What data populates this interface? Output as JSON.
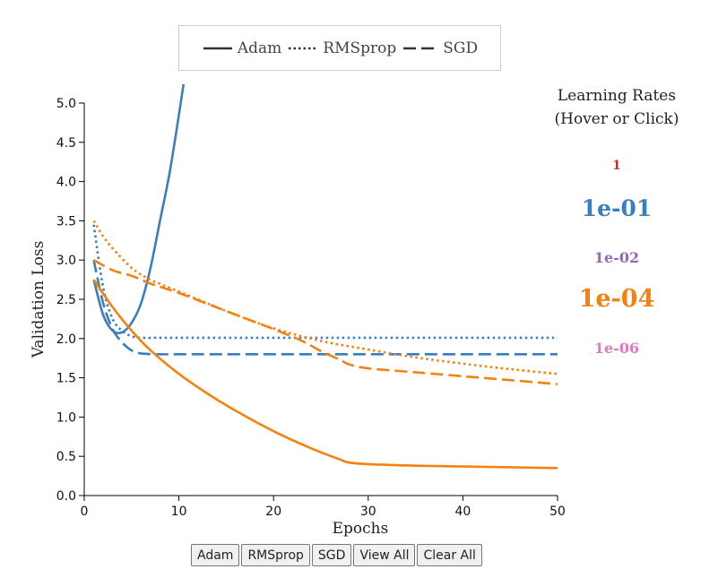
{
  "legend": {
    "items": [
      {
        "label": "Adam",
        "dash": "solid"
      },
      {
        "label": "RMSprop",
        "dash": "dotted"
      },
      {
        "label": "SGD",
        "dash": "dashed"
      }
    ]
  },
  "learning_rates": {
    "title_line1": "Learning Rates",
    "title_line2": "(Hover or Click)",
    "items": [
      {
        "label": "1",
        "color": "#d62728",
        "emphasis": "small"
      },
      {
        "label": "1e-01",
        "color": "#1f77b4",
        "emphasis": "large"
      },
      {
        "label": "1e-02",
        "color": "#9467bd",
        "emphasis": "small"
      },
      {
        "label": "1e-04",
        "color": "#ff7f0e",
        "emphasis": "large"
      },
      {
        "label": "1e-06",
        "color": "#e377c2",
        "emphasis": "small"
      }
    ]
  },
  "buttons": {
    "adam": "Adam",
    "rmsprop": "RMSprop",
    "sgd": "SGD",
    "view_all": "View All",
    "clear_all": "Clear All"
  },
  "chart_data": {
    "type": "line",
    "xlabel": "Epochs",
    "ylabel": "Validation Loss",
    "xlim": [
      0,
      50
    ],
    "ylim": [
      0,
      5
    ],
    "xticks": [
      0,
      10,
      20,
      30,
      40,
      50
    ],
    "yticks": [
      0.0,
      0.5,
      1.0,
      1.5,
      2.0,
      2.5,
      3.0,
      3.5,
      4.0,
      4.5,
      5.0
    ],
    "series": [
      {
        "optimizer": "Adam",
        "learning_rate": "1e-01",
        "color": "#3a7ebf",
        "dash": "solid",
        "x": [
          1,
          2,
          3,
          4,
          5,
          6,
          7,
          8,
          9,
          10,
          10.5
        ],
        "y": [
          2.75,
          2.3,
          2.1,
          2.08,
          2.2,
          2.45,
          2.9,
          3.5,
          4.1,
          4.85,
          5.25
        ]
      },
      {
        "optimizer": "RMSprop",
        "learning_rate": "1e-01",
        "color": "#3a7ebf",
        "dash": "dotted",
        "x": [
          1,
          2,
          3,
          4,
          5,
          6,
          8,
          10,
          20,
          30,
          40,
          50
        ],
        "y": [
          3.45,
          2.65,
          2.25,
          2.1,
          2.03,
          2.01,
          2.01,
          2.01,
          2.01,
          2.01,
          2.01,
          2.01
        ]
      },
      {
        "optimizer": "SGD",
        "learning_rate": "1e-01",
        "color": "#3a7ebf",
        "dash": "dashed",
        "x": [
          1,
          2,
          3,
          4,
          5,
          6,
          8,
          10,
          20,
          30,
          40,
          50
        ],
        "y": [
          3.0,
          2.45,
          2.12,
          1.95,
          1.85,
          1.81,
          1.8,
          1.8,
          1.8,
          1.8,
          1.8,
          1.8
        ]
      },
      {
        "optimizer": "Adam",
        "learning_rate": "1e-04",
        "color": "#f5820f",
        "dash": "solid",
        "x": [
          1,
          3,
          5,
          7,
          10,
          13,
          16,
          20,
          24,
          27,
          28,
          30,
          35,
          40,
          45,
          50
        ],
        "y": [
          2.75,
          2.4,
          2.1,
          1.85,
          1.55,
          1.3,
          1.08,
          0.82,
          0.6,
          0.46,
          0.42,
          0.4,
          0.38,
          0.37,
          0.36,
          0.35
        ]
      },
      {
        "optimizer": "RMSprop",
        "learning_rate": "1e-04",
        "color": "#f5820f",
        "dash": "dotted",
        "x": [
          1,
          2,
          3,
          5,
          7,
          10,
          15,
          20,
          25,
          30,
          35,
          40,
          45,
          50
        ],
        "y": [
          3.5,
          3.3,
          3.15,
          2.9,
          2.75,
          2.6,
          2.35,
          2.13,
          1.97,
          1.86,
          1.76,
          1.68,
          1.61,
          1.55
        ]
      },
      {
        "optimizer": "SGD",
        "learning_rate": "1e-04",
        "color": "#f5820f",
        "dash": "dashed",
        "x": [
          1,
          3,
          5,
          7,
          10,
          15,
          20,
          23,
          25,
          27,
          28,
          30,
          35,
          40,
          45,
          50
        ],
        "y": [
          3.0,
          2.87,
          2.8,
          2.7,
          2.58,
          2.35,
          2.12,
          1.97,
          1.84,
          1.73,
          1.67,
          1.62,
          1.57,
          1.52,
          1.47,
          1.42
        ]
      }
    ]
  }
}
